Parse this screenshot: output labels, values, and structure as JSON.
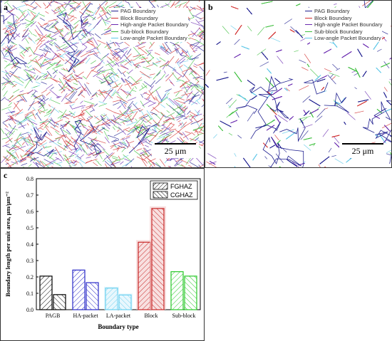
{
  "panels": {
    "a": {
      "label": "a",
      "scale": "25 μm"
    },
    "b": {
      "label": "b",
      "scale": "25 μm"
    },
    "c": {
      "label": "c"
    }
  },
  "map_legend": [
    {
      "label": "PAG Boundary",
      "color": "#1f1f8f"
    },
    {
      "label": "Block Boundary",
      "color": "#d23030"
    },
    {
      "label": "High-angle Packet Boundary",
      "color": "#6a2ab0"
    },
    {
      "label": "Sub-block Boundary",
      "color": "#3fbf3f"
    },
    {
      "label": "Low-angle Packet Boundary",
      "color": "#5ec8e8"
    }
  ],
  "chart_data": {
    "type": "bar",
    "categories": [
      "PAGB",
      "HA-packet",
      "LA-packet",
      "Block",
      "Sub-block"
    ],
    "category_colors": [
      "#000000",
      "#2a2ac8",
      "#6ad0f0",
      "#c82828",
      "#28c828"
    ],
    "series": [
      {
        "name": "FGHAZ",
        "values": [
          0.205,
          0.242,
          0.132,
          0.412,
          0.232
        ]
      },
      {
        "name": "CGHAZ",
        "values": [
          0.092,
          0.165,
          0.09,
          0.618,
          0.205
        ]
      }
    ],
    "xlabel": "Boundary type",
    "ylabel": "Boundary length per unit area, μm/μm⁻²",
    "ylim": [
      0,
      0.8
    ],
    "yticks": [
      "0.0",
      "0.1",
      "0.2",
      "0.3",
      "0.4",
      "0.5",
      "0.6",
      "0.7",
      "0.8"
    ],
    "legend_position": "top-right"
  }
}
